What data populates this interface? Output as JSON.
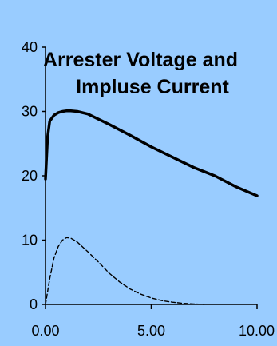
{
  "chart_data": {
    "type": "line",
    "title_lines": [
      "Arrester Voltage and",
      "Impluse Current"
    ],
    "xlabel": "",
    "ylabel": "",
    "xlim": [
      0,
      10
    ],
    "ylim": [
      0,
      40
    ],
    "x_ticks": [
      0,
      5,
      10
    ],
    "x_tick_labels": [
      "0.00",
      "5.00",
      "10.00"
    ],
    "y_ticks": [
      0,
      10,
      20,
      30,
      40
    ],
    "y_tick_labels": [
      "0",
      "10",
      "20",
      "30",
      "40"
    ],
    "grid": false,
    "legend": "none",
    "series": [
      {
        "style": "solid",
        "color": "#000000",
        "x": [
          0,
          0.1,
          0.2,
          0.4,
          0.6,
          0.8,
          1.0,
          1.2,
          1.5,
          2.0,
          3.0,
          4.0,
          5.0,
          6.0,
          7.0,
          8.0,
          9.0,
          10.0
        ],
        "y": [
          19.5,
          26.0,
          28.5,
          29.4,
          29.8,
          30.0,
          30.1,
          30.1,
          30.0,
          29.6,
          28.0,
          26.3,
          24.5,
          22.9,
          21.3,
          20.0,
          18.3,
          16.9
        ]
      },
      {
        "style": "dashed",
        "color": "#000000",
        "x": [
          0,
          0.2,
          0.4,
          0.6,
          0.8,
          1.0,
          1.2,
          1.5,
          2.0,
          2.5,
          3.0,
          3.5,
          4.0,
          4.5,
          5.0,
          5.5,
          6.0,
          6.5,
          7.0,
          7.5
        ],
        "y": [
          0,
          4.0,
          7.2,
          9.0,
          10.0,
          10.4,
          10.3,
          9.7,
          8.2,
          6.6,
          4.9,
          3.5,
          2.4,
          1.6,
          1.0,
          0.6,
          0.35,
          0.18,
          0.08,
          0.0
        ]
      }
    ]
  }
}
